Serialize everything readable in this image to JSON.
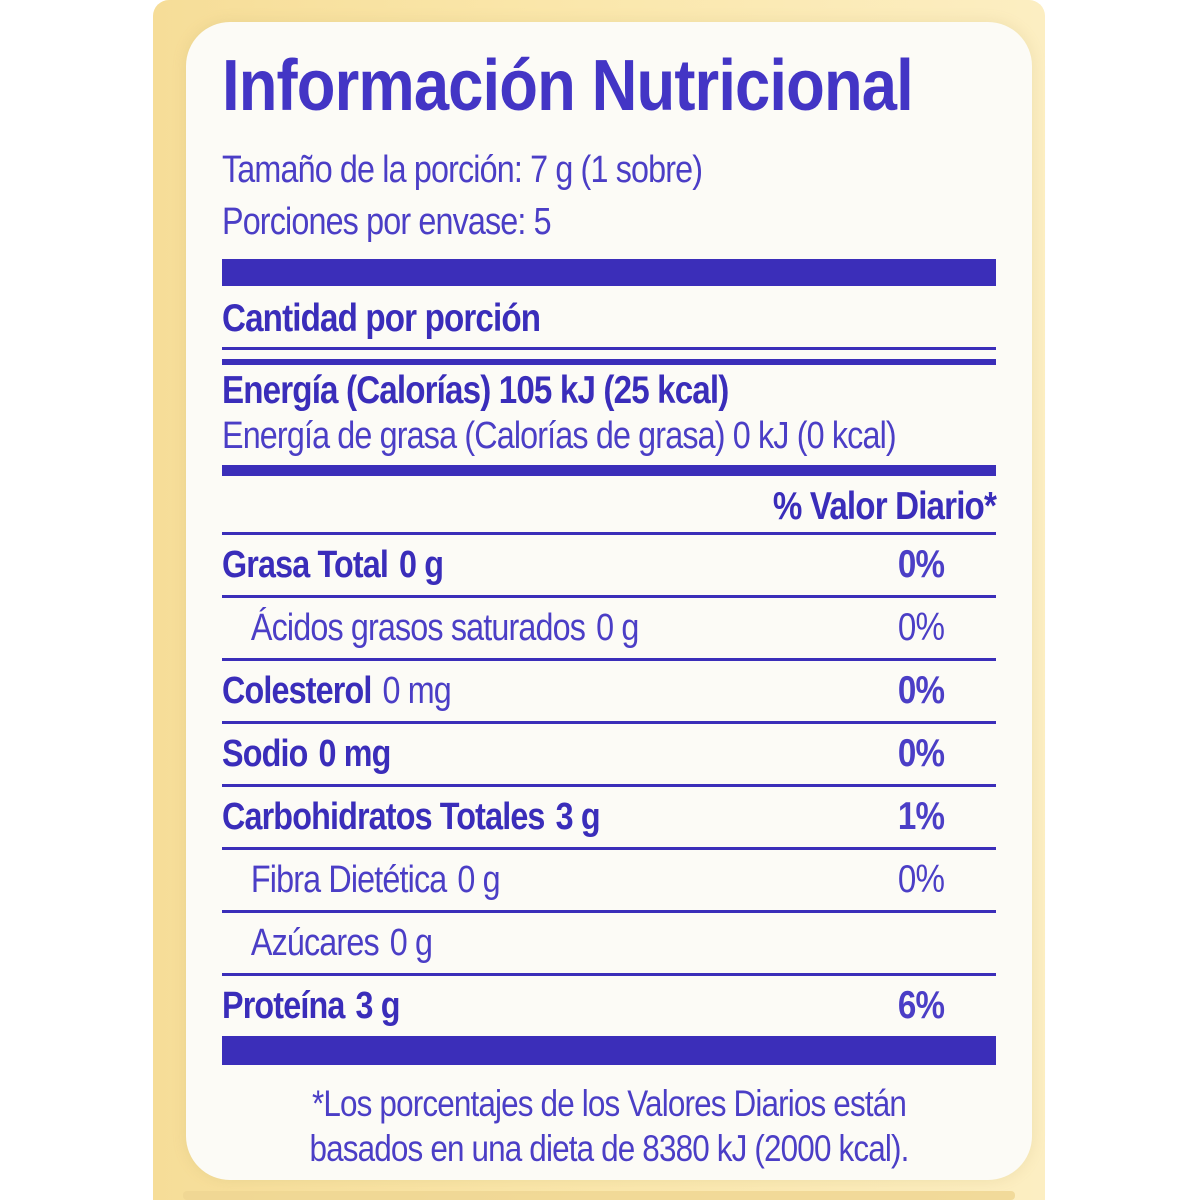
{
  "colors": {
    "text_blue": "#4b3ec6",
    "bold_blue": "#3a2dba",
    "bar_blue": "#3b2eb9",
    "title_blue": "#4335c5",
    "package_yellow": "#fae6a9",
    "label_white": "#fcfbf6"
  },
  "label": {
    "title": "Información Nutricional",
    "serving_size": "Tamaño de la porción: 7 g (1 sobre)",
    "servings_per_container": "Porciones por envase: 5",
    "amount_per_serving": "Cantidad por porción",
    "energy": "Energía (Calorías) 105 kJ (25 kcal)",
    "energy_from_fat": "Energía de grasa (Calorías de grasa) 0 kJ (0 kcal)",
    "daily_value_header": "% Valor Diario*",
    "rows": [
      {
        "name": "Grasa Total",
        "value": "0 g",
        "pct": "0%",
        "name_bold": true,
        "value_bold": true,
        "pct_bold": true,
        "indent": false
      },
      {
        "name": "Ácidos grasos saturados",
        "value": "0 g",
        "pct": "0%",
        "name_bold": false,
        "value_bold": false,
        "pct_bold": false,
        "indent": true
      },
      {
        "name": "Colesterol",
        "value": "0 mg",
        "pct": "0%",
        "name_bold": true,
        "value_bold": false,
        "pct_bold": true,
        "indent": false
      },
      {
        "name": "Sodio",
        "value": "0 mg",
        "pct": "0%",
        "name_bold": true,
        "value_bold": true,
        "pct_bold": true,
        "indent": false
      },
      {
        "name": "Carbohidratos Totales",
        "value": "3 g",
        "pct": "1%",
        "name_bold": true,
        "value_bold": true,
        "pct_bold": true,
        "indent": false
      },
      {
        "name": "Fibra Dietética",
        "value": "0 g",
        "pct": "0%",
        "name_bold": false,
        "value_bold": false,
        "pct_bold": false,
        "indent": true
      },
      {
        "name": "Azúcares",
        "value": "0 g",
        "pct": "",
        "name_bold": false,
        "value_bold": false,
        "pct_bold": false,
        "indent": true
      },
      {
        "name": "Proteína",
        "value": "3 g",
        "pct": "6%",
        "name_bold": true,
        "value_bold": true,
        "pct_bold": true,
        "indent": false
      }
    ],
    "footnote": "*Los porcentajes de los Valores Diarios están basados en una dieta de 8380 kJ (2000 kcal)."
  }
}
